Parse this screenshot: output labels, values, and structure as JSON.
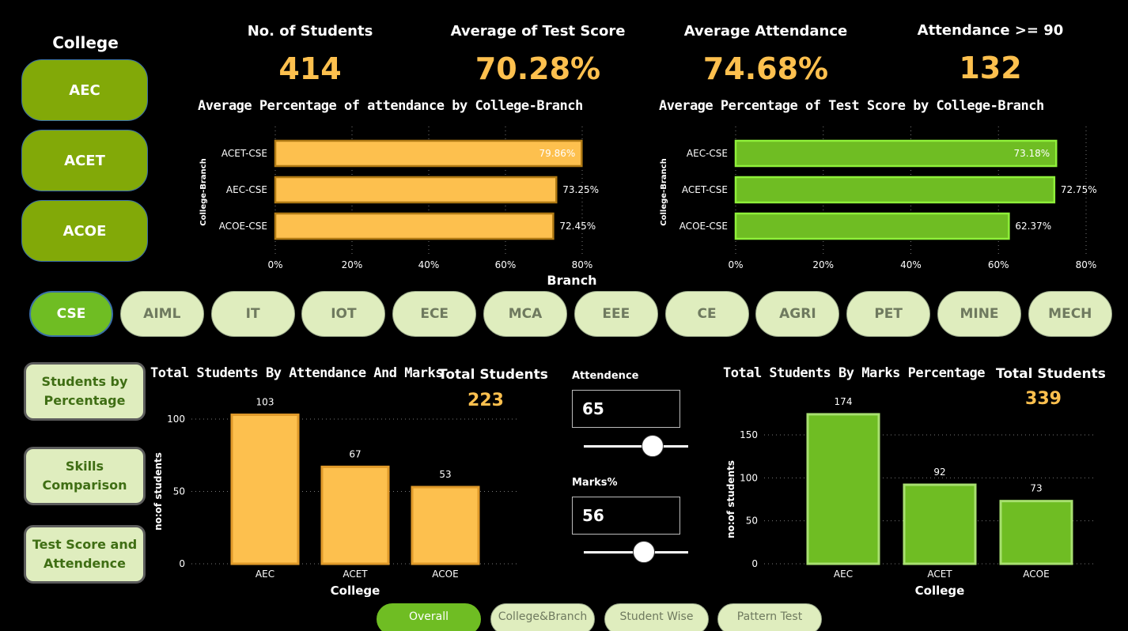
{
  "college_slicer": {
    "title": "College",
    "items": [
      {
        "label": "AEC"
      },
      {
        "label": "ACET"
      },
      {
        "label": "ACOE"
      }
    ]
  },
  "kpis": [
    {
      "title": "No. of Students",
      "value": "414"
    },
    {
      "title": "Average of Test Score",
      "value": "70.28%"
    },
    {
      "title": "Average Attendance",
      "value": "74.68%"
    },
    {
      "title": "Attendance >= 90",
      "value": "132"
    }
  ],
  "branches": [
    "CSE",
    "AIML",
    "IT",
    "IOT",
    "ECE",
    "MCA",
    "EEE",
    "CE",
    "AGRI",
    "PET",
    "MINE",
    "MECH"
  ],
  "branch_selected": "CSE",
  "nav": [
    {
      "label": "Students by Percentage"
    },
    {
      "label": "Skills Comparison"
    },
    {
      "label": "Test Score and Attendence"
    }
  ],
  "bottom_left": {
    "total_label": "Total Students",
    "total_value": "223"
  },
  "bottom_right": {
    "total_label": "Total Students",
    "total_value": "339"
  },
  "controls": {
    "attendance_label": "Attendence",
    "attendance_value": "65",
    "marks_label": "Marks%",
    "marks_value": "56"
  },
  "tabs": [
    {
      "label": "Overall",
      "active": true
    },
    {
      "label": "College&Branch",
      "active": false
    },
    {
      "label": "Student Wise",
      "active": false
    },
    {
      "label": "Pattern Test",
      "active": false
    }
  ],
  "colors": {
    "orange": "#fdc04e",
    "green": "#6fbd23",
    "olive": "#82a908"
  },
  "chart_data": [
    {
      "type": "bar",
      "orientation": "horizontal",
      "title": "Average Percentage of attendance by College-Branch",
      "categories": [
        "ACET-CSE",
        "AEC-CSE",
        "ACOE-CSE"
      ],
      "values": [
        79.86,
        73.25,
        72.45
      ],
      "data_labels": [
        "79.86%",
        "73.25%",
        "72.45%"
      ],
      "xlabel": "Branch",
      "ylabel": "College-Branch",
      "xlim": [
        0,
        80
      ],
      "xticks": [
        "0%",
        "20%",
        "40%",
        "60%",
        "80%"
      ],
      "grid": true
    },
    {
      "type": "bar",
      "orientation": "horizontal",
      "title": "Average Percentage of Test Score by College-Branch",
      "categories": [
        "AEC-CSE",
        "ACET-CSE",
        "ACOE-CSE"
      ],
      "values": [
        73.18,
        72.75,
        62.37
      ],
      "data_labels": [
        "73.18%",
        "72.75%",
        "62.37%"
      ],
      "xlabel": "",
      "ylabel": "College-Branch",
      "xlim": [
        0,
        80
      ],
      "xticks": [
        "0%",
        "20%",
        "40%",
        "60%",
        "80%"
      ],
      "grid": true
    },
    {
      "type": "bar",
      "title": "Total Students By Attendance And Marks",
      "categories": [
        "AEC",
        "ACET",
        "ACOE"
      ],
      "values": [
        103,
        67,
        53
      ],
      "xlabel": "College",
      "ylabel": "no:of students",
      "ylim": [
        0,
        100
      ],
      "yticks": [
        "0",
        "50",
        "100"
      ],
      "grid": true
    },
    {
      "type": "bar",
      "title": "Total Students By Marks Percentage",
      "categories": [
        "AEC",
        "ACET",
        "ACOE"
      ],
      "values": [
        174,
        92,
        73
      ],
      "xlabel": "College",
      "ylabel": "no:of students",
      "ylim": [
        0,
        150
      ],
      "yticks": [
        "0",
        "50",
        "100",
        "150"
      ],
      "grid": true
    }
  ]
}
